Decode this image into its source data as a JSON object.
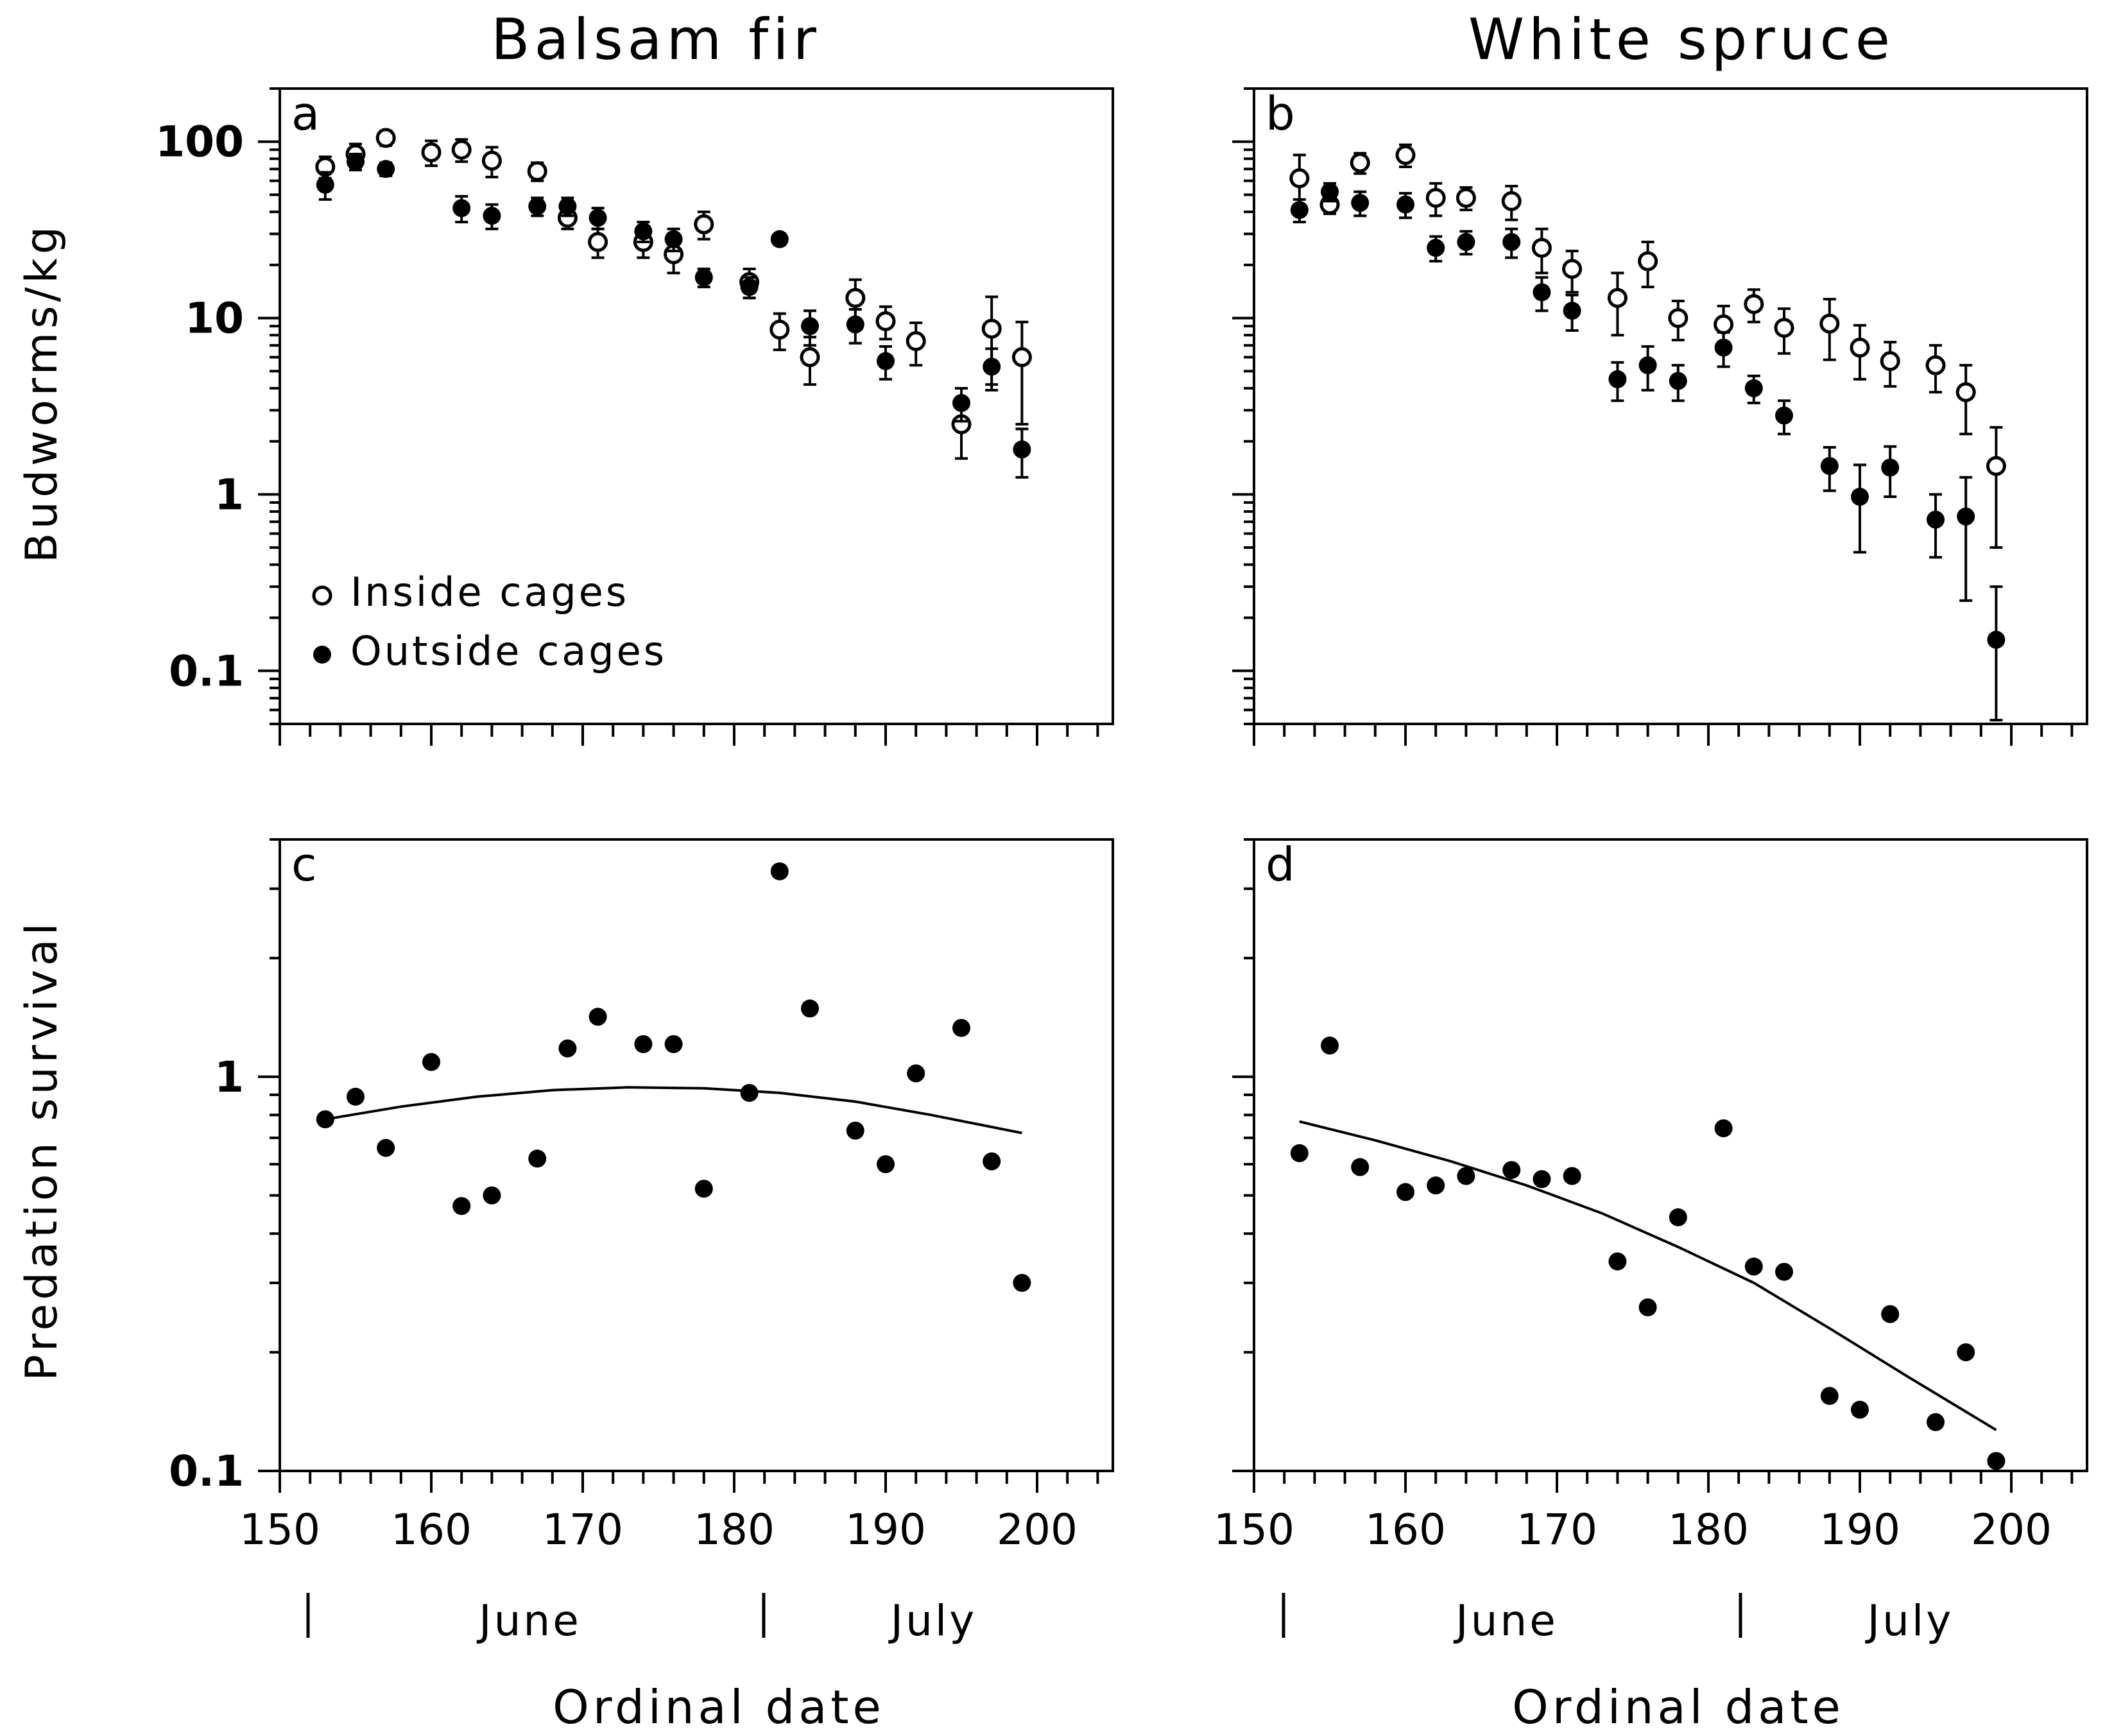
{
  "columns": [
    {
      "title": "Balsam fir",
      "x_label": "Ordinal date",
      "months": [
        "June",
        "July"
      ]
    },
    {
      "title": "White spruce",
      "x_label": "Ordinal date",
      "months": [
        "June",
        "July"
      ]
    }
  ],
  "rows": [
    {
      "y_label": "Budworms/kg"
    },
    {
      "y_label": "Predation survival"
    }
  ],
  "legend": {
    "inside": "Inside cages",
    "outside": "Outside cages"
  },
  "chart_data": [
    {
      "panel": "a",
      "type": "scatter",
      "title": "Balsam fir",
      "ylabel": "Budworms/kg",
      "xlabel": "",
      "yscale": "log",
      "xlim": [
        150,
        205
      ],
      "ylim": [
        0.05,
        200
      ],
      "x_ticks": [
        "150",
        "160",
        "170",
        "180",
        "190",
        "200"
      ],
      "y_ticks": [
        "0.1",
        "1",
        "10",
        "100"
      ],
      "series": [
        {
          "name": "Inside cages",
          "marker": "open-circle",
          "x": [
            153,
            155,
            157,
            160,
            162,
            164,
            167,
            169,
            171,
            174,
            176,
            178,
            181,
            183,
            185,
            188,
            190,
            192,
            195,
            197,
            199
          ],
          "y": [
            72,
            85,
            105,
            87,
            90,
            78,
            68,
            37,
            27,
            27,
            23,
            34,
            16,
            8.6,
            6.0,
            13,
            9.6,
            7.4,
            2.5,
            8.7,
            6.0
          ],
          "err": [
            10,
            12,
            10,
            14,
            13,
            15,
            8,
            5,
            5,
            5,
            5,
            6,
            3,
            2,
            1.8,
            3.5,
            2,
            2,
            0.9,
            4.5,
            3.5
          ]
        },
        {
          "name": "Outside cages",
          "marker": "filled-circle",
          "x": [
            153,
            155,
            157,
            162,
            164,
            167,
            169,
            171,
            174,
            176,
            178,
            181,
            183,
            185,
            188,
            190,
            195,
            197,
            199
          ],
          "y": [
            57,
            77,
            70,
            42,
            38,
            43,
            43,
            37,
            31,
            28,
            17,
            15,
            28,
            9.0,
            9.2,
            5.7,
            3.3,
            5.3,
            1.8
          ],
          "err": [
            10,
            8,
            6,
            7,
            6,
            5,
            5,
            5,
            4,
            4,
            2,
            2,
            2,
            2,
            2,
            1.2,
            0.7,
            1.4,
            0.55
          ]
        }
      ]
    },
    {
      "panel": "b",
      "type": "scatter",
      "title": "White spruce",
      "ylabel": "",
      "xlabel": "",
      "yscale": "log",
      "xlim": [
        150,
        205
      ],
      "ylim": [
        0.05,
        200
      ],
      "x_ticks": [
        "150",
        "160",
        "170",
        "180",
        "190",
        "200"
      ],
      "y_ticks": [
        "0.1",
        "1",
        "10",
        "100"
      ],
      "series": [
        {
          "name": "Inside cages",
          "marker": "open-circle",
          "x": [
            153,
            155,
            157,
            160,
            162,
            164,
            167,
            169,
            171,
            174,
            176,
            178,
            181,
            183,
            185,
            188,
            190,
            192,
            195,
            197,
            199
          ],
          "y": [
            62,
            44,
            76,
            84,
            48,
            48,
            46,
            25,
            19,
            13,
            21,
            10,
            9.2,
            12,
            8.8,
            9.3,
            6.8,
            5.7,
            5.4,
            3.8,
            1.45
          ],
          "err": [
            22,
            5,
            10,
            12,
            10,
            7,
            10,
            7,
            5,
            5,
            6,
            2.5,
            2.5,
            2.5,
            2.5,
            3.5,
            2.3,
            1.6,
            1.6,
            1.6,
            0.95
          ]
        },
        {
          "name": "Outside cages",
          "marker": "filled-circle",
          "x": [
            153,
            155,
            157,
            160,
            162,
            164,
            167,
            169,
            171,
            174,
            176,
            178,
            181,
            183,
            185,
            188,
            190,
            192,
            195,
            197,
            199
          ],
          "y": [
            41,
            52,
            45,
            44,
            25,
            27,
            27,
            14,
            11,
            4.5,
            5.4,
            4.4,
            6.8,
            4.0,
            2.8,
            1.45,
            0.97,
            1.42,
            0.72,
            0.75,
            0.15
          ],
          "err": [
            6,
            6,
            7,
            7,
            4,
            4,
            5,
            3,
            2.5,
            1.1,
            1.5,
            1.0,
            1.5,
            0.7,
            0.6,
            0.4,
            0.5,
            0.45,
            0.28,
            0.5,
            0.15
          ]
        }
      ]
    },
    {
      "panel": "c",
      "type": "scatter",
      "title": "",
      "ylabel": "Predation survival",
      "xlabel": "Ordinal date",
      "yscale": "log",
      "xlim": [
        150,
        205
      ],
      "ylim": [
        0.1,
        4
      ],
      "x_ticks": [
        "150",
        "160",
        "170",
        "180",
        "190",
        "200"
      ],
      "y_ticks": [
        "0.1",
        "1"
      ],
      "series": [
        {
          "name": "",
          "marker": "filled-circle",
          "x": [
            153,
            155,
            157,
            160,
            162,
            164,
            167,
            169,
            171,
            174,
            176,
            178,
            181,
            183,
            185,
            188,
            190,
            192,
            195,
            197,
            199
          ],
          "y": [
            0.78,
            0.89,
            0.66,
            1.09,
            0.47,
            0.5,
            0.62,
            1.18,
            1.42,
            1.21,
            1.21,
            0.52,
            0.91,
            3.32,
            1.49,
            0.73,
            0.6,
            1.02,
            1.33,
            0.61,
            0.3
          ]
        }
      ],
      "fit_curve": {
        "x": [
          153,
          158,
          163,
          168,
          173,
          178,
          183,
          188,
          193,
          199
        ],
        "y": [
          0.78,
          0.84,
          0.89,
          0.925,
          0.94,
          0.935,
          0.91,
          0.865,
          0.8,
          0.72
        ]
      }
    },
    {
      "panel": "d",
      "type": "scatter",
      "title": "",
      "ylabel": "",
      "xlabel": "Ordinal date",
      "yscale": "log",
      "xlim": [
        150,
        205
      ],
      "ylim": [
        0.1,
        4
      ],
      "x_ticks": [
        "150",
        "160",
        "170",
        "180",
        "190",
        "200"
      ],
      "y_ticks": [],
      "series": [
        {
          "name": "",
          "marker": "filled-circle",
          "x": [
            153,
            155,
            157,
            160,
            162,
            164,
            167,
            169,
            171,
            174,
            176,
            178,
            181,
            183,
            185,
            188,
            190,
            192,
            195,
            197,
            199
          ],
          "y": [
            0.64,
            1.2,
            0.59,
            0.51,
            0.53,
            0.56,
            0.58,
            0.55,
            0.56,
            0.34,
            0.26,
            0.44,
            0.74,
            0.33,
            0.32,
            0.155,
            0.143,
            0.25,
            0.133,
            0.2,
            0.106
          ]
        }
      ],
      "fit_curve": {
        "x": [
          153,
          158,
          163,
          168,
          173,
          178,
          183,
          188,
          193,
          199
        ],
        "y": [
          0.77,
          0.69,
          0.61,
          0.53,
          0.45,
          0.37,
          0.3,
          0.23,
          0.175,
          0.127
        ]
      }
    }
  ]
}
